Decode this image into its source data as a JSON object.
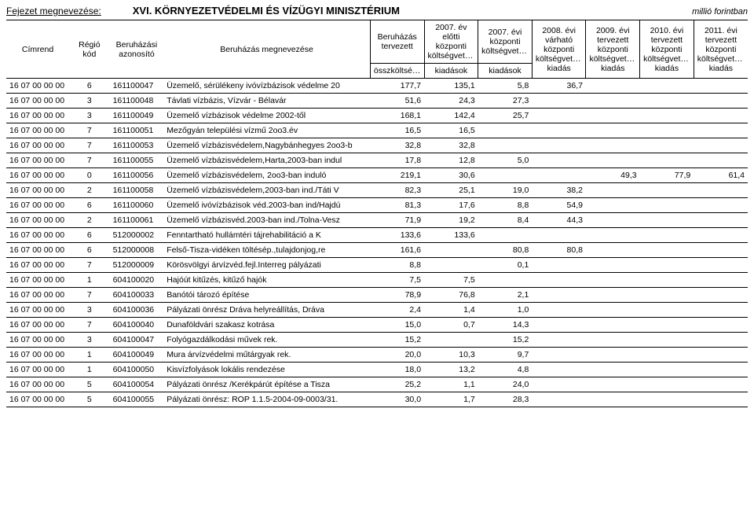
{
  "chapter_label": "Fejezet megnevezése:",
  "chapter_title": "XVI. KÖRNYEZETVÉDELMI ÉS VÍZÜGYI MINISZTÉRIUM",
  "unit": "millió forintban",
  "header": {
    "cimrend": "Címrend",
    "regio": "Régió kód",
    "azon": "Beruházási azonosító",
    "nev": "Beruházás megnevezése",
    "tervezett": "Beruházás tervezett",
    "osszkoltseg": "összköltsége",
    "y2007_elotti_top": "2007. év előtti központi költségvetési",
    "kiadasok": "kiadások",
    "y2007_top": "2007. évi központi költségvetési",
    "y2008": "2008. évi várható központi költségvetési kiadás",
    "y2009": "2009. évi tervezett központi költségvetési kiadás",
    "y2010": "2010. évi tervezett központi költségvetési kiadás",
    "y2011": "2011. évi tervezett központi költségvetési kiadás"
  },
  "rows": [
    {
      "cim": "16 07 00 00 00",
      "reg": "6",
      "az": "161100047",
      "nev": "Üzemelő, sérülékeny ivóvízbázisok védelme 20",
      "v": [
        "177,7",
        "135,1",
        "5,8",
        "36,7",
        "",
        "",
        ""
      ]
    },
    {
      "cim": "16 07 00 00 00",
      "reg": "3",
      "az": "161100048",
      "nev": "Távlati vízbázis, Vízvár - Bélavár",
      "v": [
        "51,6",
        "24,3",
        "27,3",
        "",
        "",
        "",
        ""
      ]
    },
    {
      "cim": "16 07 00 00 00",
      "reg": "3",
      "az": "161100049",
      "nev": "Üzemelő vízbázisok védelme 2002-től",
      "v": [
        "168,1",
        "142,4",
        "25,7",
        "",
        "",
        "",
        ""
      ]
    },
    {
      "cim": "16 07 00 00 00",
      "reg": "7",
      "az": "161100051",
      "nev": "Mezőgyán települési vízmű 2oo3.év",
      "v": [
        "16,5",
        "16,5",
        "",
        "",
        "",
        "",
        ""
      ]
    },
    {
      "cim": "16 07 00 00 00",
      "reg": "7",
      "az": "161100053",
      "nev": "Üzemelő vízbázisvédelem,Nagybánhegyes 2oo3-b",
      "v": [
        "32,8",
        "32,8",
        "",
        "",
        "",
        "",
        ""
      ]
    },
    {
      "cim": "16 07 00 00 00",
      "reg": "7",
      "az": "161100055",
      "nev": "Üzemelő vízbázisvédelem,Harta,2003-ban indul",
      "v": [
        "17,8",
        "12,8",
        "5,0",
        "",
        "",
        "",
        ""
      ]
    },
    {
      "cim": "16 07 00 00 00",
      "reg": "0",
      "az": "161100056",
      "nev": "Üzemelő vízbázisvédelem, 2oo3-ban induló",
      "v": [
        "219,1",
        "30,6",
        "",
        "",
        "49,3",
        "77,9",
        "61,4"
      ]
    },
    {
      "cim": "16 07 00 00 00",
      "reg": "2",
      "az": "161100058",
      "nev": "Üzemelő vízbázisvédelem,2003-ban ind./Táti V",
      "v": [
        "82,3",
        "25,1",
        "19,0",
        "38,2",
        "",
        "",
        ""
      ]
    },
    {
      "cim": "16 07 00 00 00",
      "reg": "6",
      "az": "161100060",
      "nev": "Üzemelő ivóvízbázisok véd.2003-ban ind/Hajdú",
      "v": [
        "81,3",
        "17,6",
        "8,8",
        "54,9",
        "",
        "",
        ""
      ]
    },
    {
      "cim": "16 07 00 00 00",
      "reg": "2",
      "az": "161100061",
      "nev": "Üzemelő vízbázisvéd.2003-ban ind./Tolna-Vesz",
      "v": [
        "71,9",
        "19,2",
        "8,4",
        "44,3",
        "",
        "",
        ""
      ]
    },
    {
      "cim": "16 07 00 00 00",
      "reg": "6",
      "az": "512000002",
      "nev": "Fenntartható hullámtéri tájrehabilitáció a K",
      "v": [
        "133,6",
        "133,6",
        "",
        "",
        "",
        "",
        ""
      ]
    },
    {
      "cim": "16 07 00 00 00",
      "reg": "6",
      "az": "512000008",
      "nev": "Felső-Tisza-vidéken töltésép.,tulajdonjog,re",
      "v": [
        "161,6",
        "",
        "80,8",
        "80,8",
        "",
        "",
        ""
      ]
    },
    {
      "cim": "16 07 00 00 00",
      "reg": "7",
      "az": "512000009",
      "nev": "Körösvölgyi árvízvéd.fejl.Interreg pályázati",
      "v": [
        "8,8",
        "",
        "0,1",
        "",
        "",
        "",
        ""
      ]
    },
    {
      "cim": "16 07 00 00 00",
      "reg": "1",
      "az": "604100020",
      "nev": "Hajóút kitűzés, kitűző hajók",
      "v": [
        "7,5",
        "7,5",
        "",
        "",
        "",
        "",
        ""
      ]
    },
    {
      "cim": "16 07 00 00 00",
      "reg": "7",
      "az": "604100033",
      "nev": "Banótói tározó építése",
      "v": [
        "78,9",
        "76,8",
        "2,1",
        "",
        "",
        "",
        ""
      ]
    },
    {
      "cim": "16 07 00 00 00",
      "reg": "3",
      "az": "604100036",
      "nev": "Pályázati önrész Dráva helyreállítás, Dráva",
      "v": [
        "2,4",
        "1,4",
        "1,0",
        "",
        "",
        "",
        ""
      ]
    },
    {
      "cim": "16 07 00 00 00",
      "reg": "7",
      "az": "604100040",
      "nev": "Dunaföldvári szakasz kotrása",
      "v": [
        "15,0",
        "0,7",
        "14,3",
        "",
        "",
        "",
        ""
      ]
    },
    {
      "cim": "16 07 00 00 00",
      "reg": "3",
      "az": "604100047",
      "nev": "Folyógazdálkodási művek rek.",
      "v": [
        "15,2",
        "",
        "15,2",
        "",
        "",
        "",
        ""
      ]
    },
    {
      "cim": "16 07 00 00 00",
      "reg": "1",
      "az": "604100049",
      "nev": "Mura árvízvédelmi műtárgyak rek.",
      "v": [
        "20,0",
        "10,3",
        "9,7",
        "",
        "",
        "",
        ""
      ]
    },
    {
      "cim": "16 07 00 00 00",
      "reg": "1",
      "az": "604100050",
      "nev": "Kisvízfolyások lokális rendezése",
      "v": [
        "18,0",
        "13,2",
        "4,8",
        "",
        "",
        "",
        ""
      ]
    },
    {
      "cim": "16 07 00 00 00",
      "reg": "5",
      "az": "604100054",
      "nev": "Pályázati önrész /Kerékpárút építése a Tisza",
      "v": [
        "25,2",
        "1,1",
        "24,0",
        "",
        "",
        "",
        ""
      ]
    },
    {
      "cim": "16 07 00 00 00",
      "reg": "5",
      "az": "604100055",
      "nev": "Pályázati önrész: ROP 1.1.5-2004-09-0003/31.",
      "v": [
        "30,0",
        "1,7",
        "28,3",
        "",
        "",
        "",
        ""
      ]
    }
  ]
}
